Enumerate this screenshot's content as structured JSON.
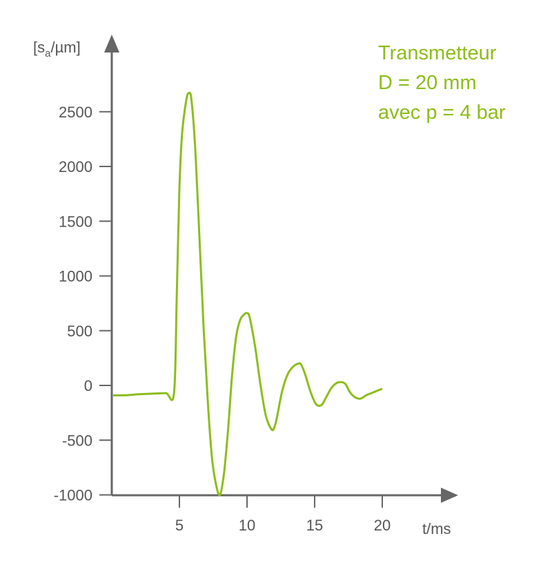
{
  "chart_data": {
    "type": "line",
    "title": "",
    "xlabel": "t/ms",
    "ylabel_prefix": "[s",
    "ylabel_sub": "a",
    "ylabel_suffix": "/µm]",
    "xlim": [
      0,
      20
    ],
    "ylim": [
      -1000,
      2800
    ],
    "x_ticks": [
      5,
      10,
      15,
      20
    ],
    "x_tick_labels": [
      "5",
      "10",
      "15",
      "20"
    ],
    "y_ticks": [
      2500,
      2000,
      1500,
      1000,
      500,
      0,
      -500,
      -1000
    ],
    "y_tick_labels": [
      "2500",
      "2000",
      "1500",
      "1000",
      "500",
      "0",
      "-500",
      "-1000"
    ],
    "grid": false,
    "annotation_lines": [
      "Transmetteur",
      "D = 20 mm",
      "avec p = 4 bar"
    ],
    "annotation_position": "top-right",
    "line_color": "#8cbd1a",
    "axis_color": "#666666",
    "series": [
      {
        "x": [
          0.1,
          1.0,
          2.0,
          3.0,
          4.0,
          4.6,
          4.8,
          5.0,
          5.2,
          5.5,
          5.7,
          5.9,
          6.2,
          6.5,
          6.8,
          7.1,
          7.4,
          7.7,
          8.0,
          8.3,
          8.6,
          8.9,
          9.2,
          9.5,
          9.8,
          10.0,
          10.2,
          10.6,
          11.0,
          11.4,
          11.8,
          12.0,
          12.2,
          12.6,
          13.0,
          13.4,
          13.8,
          14.0,
          14.3,
          14.7,
          15.1,
          15.5,
          15.8,
          16.2,
          16.6,
          17.0,
          17.3,
          17.6,
          18.0,
          18.4,
          18.8,
          19.2,
          19.6,
          20.0
        ],
        "y": [
          -90,
          -90,
          -80,
          -75,
          -70,
          -70,
          800,
          1800,
          2300,
          2600,
          2670,
          2600,
          2100,
          1300,
          500,
          -150,
          -650,
          -900,
          -1000,
          -800,
          -400,
          100,
          450,
          600,
          650,
          660,
          620,
          350,
          0,
          -280,
          -400,
          -390,
          -300,
          -50,
          100,
          170,
          200,
          190,
          100,
          -60,
          -170,
          -180,
          -120,
          -30,
          20,
          30,
          10,
          -60,
          -110,
          -120,
          -90,
          -70,
          -50,
          -30
        ]
      }
    ]
  }
}
